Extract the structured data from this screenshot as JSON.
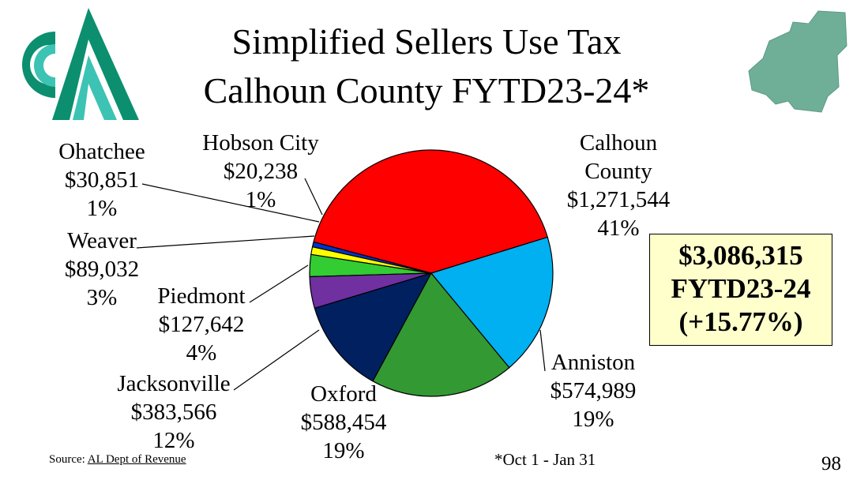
{
  "title_line1": "Simplified Sellers Use Tax",
  "title_line2": "Calhoun County FYTD23-24*",
  "total": {
    "amount": "$3,086,315",
    "period": "FYTD23-24",
    "change": "(+15.77%)"
  },
  "source_label": "Source:",
  "source_link": "AL Dept of Revenue",
  "footnote": "*Oct 1 - Jan 31",
  "page_number": "98",
  "colors": {
    "logo_dark": "#0b8f6f",
    "logo_light": "#3cc3b4",
    "county_map": "#6faf98",
    "box_bg": "#ffffcc"
  },
  "chart_data": {
    "type": "pie",
    "start_angle_deg": 17,
    "direction": "counterclockwise",
    "slices": [
      {
        "name": "Calhoun County",
        "label_lines": [
          "Calhoun",
          "County"
        ],
        "value": 1271544,
        "value_label": "$1,271,544",
        "pct_label": "41%",
        "color": "#ff0000"
      },
      {
        "name": "Hobson City",
        "label_lines": [
          "Hobson City"
        ],
        "value": 20238,
        "value_label": "$20,238",
        "pct_label": "1%",
        "color": "#0033cc"
      },
      {
        "name": "Ohatchee",
        "label_lines": [
          "Ohatchee"
        ],
        "value": 30851,
        "value_label": "$30,851",
        "pct_label": "1%",
        "color": "#ffff00"
      },
      {
        "name": "Weaver",
        "label_lines": [
          "Weaver"
        ],
        "value": 89032,
        "value_label": "$89,032",
        "pct_label": "3%",
        "color": "#33cc33"
      },
      {
        "name": "Piedmont",
        "label_lines": [
          "Piedmont"
        ],
        "value": 127642,
        "value_label": "$127,642",
        "pct_label": "4%",
        "color": "#7030a0"
      },
      {
        "name": "Jacksonville",
        "label_lines": [
          "Jacksonville"
        ],
        "value": 383566,
        "value_label": "$383,566",
        "pct_label": "12%",
        "color": "#002060"
      },
      {
        "name": "Oxford",
        "label_lines": [
          "Oxford"
        ],
        "value": 588454,
        "value_label": "$588,454",
        "pct_label": "19%",
        "color": "#339933"
      },
      {
        "name": "Anniston",
        "label_lines": [
          "Anniston"
        ],
        "value": 574989,
        "value_label": "$574,989",
        "pct_label": "19%",
        "color": "#00b0f0"
      }
    ]
  }
}
